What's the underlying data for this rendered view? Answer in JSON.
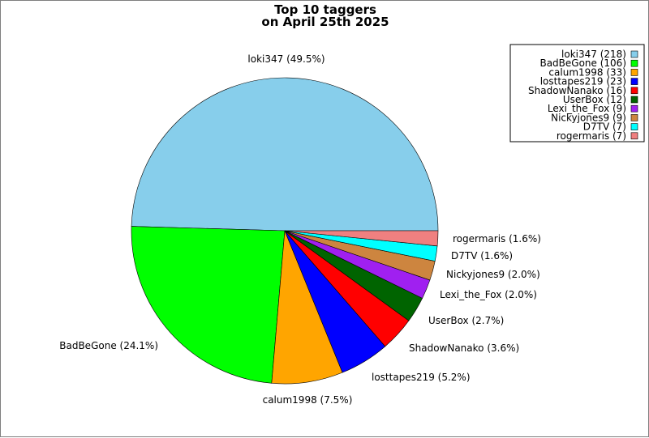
{
  "chart_data": {
    "type": "pie",
    "title": "Top 10 taggers",
    "subtitle": "on April 25th 2025",
    "legend_position": "top-right",
    "slices": [
      {
        "name": "loki347",
        "value": 218,
        "percent_label": "loki347 (49.5%)",
        "legend_label": "loki347 (218)",
        "color": "#87CEEB"
      },
      {
        "name": "BadBeGone",
        "value": 106,
        "percent_label": "BadBeGone (24.1%)",
        "legend_label": "BadBeGone (106)",
        "color": "#00FF00"
      },
      {
        "name": "calum1998",
        "value": 33,
        "percent_label": "calum1998 (7.5%)",
        "legend_label": "calum1998 (33)",
        "color": "#FFA500"
      },
      {
        "name": "losttapes219",
        "value": 23,
        "percent_label": "losttapes219 (5.2%)",
        "legend_label": "losttapes219 (23)",
        "color": "#0000FF"
      },
      {
        "name": "ShadowNanako",
        "value": 16,
        "percent_label": "ShadowNanako (3.6%)",
        "legend_label": "ShadowNanako (16)",
        "color": "#FF0000"
      },
      {
        "name": "UserBox",
        "value": 12,
        "percent_label": "UserBox (2.7%)",
        "legend_label": "UserBox (12)",
        "color": "#006400"
      },
      {
        "name": "Lexi_the_Fox",
        "value": 9,
        "percent_label": "Lexi_the_Fox (2.0%)",
        "legend_label": "Lexi_the_Fox (9)",
        "color": "#A020F0"
      },
      {
        "name": "Nickyjones9",
        "value": 9,
        "percent_label": "Nickyjones9 (2.0%)",
        "legend_label": "Nickyjones9 (9)",
        "color": "#CD853F"
      },
      {
        "name": "D7TV",
        "value": 7,
        "percent_label": "D7TV (1.6%)",
        "legend_label": "D7TV (7)",
        "color": "#00FFFF"
      },
      {
        "name": "rogermaris",
        "value": 7,
        "percent_label": "rogermaris (1.6%)",
        "legend_label": "rogermaris (7)",
        "color": "#F08080"
      }
    ]
  }
}
